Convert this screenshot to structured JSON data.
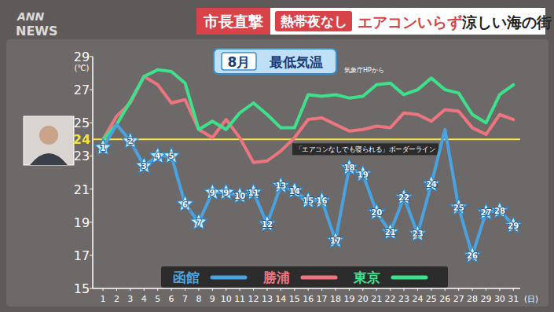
{
  "header": {
    "logo_top": "ANN",
    "logo_bottom": "NEWS",
    "tag": "市長直撃",
    "badge": "熱帯夜なし",
    "headline_red": "エアコンいらず",
    "headline": "涼しい海の街"
  },
  "chart_data": {
    "type": "line",
    "title": "8月 最低気温",
    "source": "気象庁HPから",
    "y_label": "(℃)",
    "x_label": "(日)",
    "x": [
      1,
      2,
      3,
      4,
      5,
      6,
      7,
      8,
      9,
      10,
      11,
      12,
      13,
      14,
      15,
      16,
      17,
      18,
      19,
      20,
      21,
      22,
      23,
      24,
      25,
      26,
      27,
      28,
      29,
      30,
      31
    ],
    "xlim": [
      0.25,
      31.5
    ],
    "xticks": [
      1,
      2,
      3,
      4,
      5,
      6,
      7,
      8,
      9,
      10,
      11,
      12,
      13,
      14,
      15,
      16,
      17,
      18,
      19,
      20,
      21,
      22,
      23,
      24,
      25,
      26,
      27,
      28,
      29,
      30,
      31
    ],
    "ylim": [
      15,
      29
    ],
    "yticks": [
      15,
      17,
      19,
      21,
      23,
      25,
      27,
      29
    ],
    "grid": false,
    "legend": "bottom",
    "annotations": [
      {
        "y": 24,
        "text": "「エアコンなしでも寝られる」ボーダーライン",
        "color": "#f2e23a"
      }
    ],
    "series": [
      {
        "name": "函館",
        "color": "#4aa3e0",
        "marker": "star",
        "values": [
          23.5,
          24.9,
          23.9,
          22.4,
          23.0,
          23.0,
          20.1,
          19.0,
          20.8,
          20.8,
          20.6,
          20.8,
          18.9,
          21.2,
          20.9,
          20.3,
          20.3,
          17.9,
          22.3,
          21.9,
          19.6,
          18.4,
          20.5,
          18.3,
          21.3,
          24.6,
          19.9,
          17.0,
          19.6,
          19.7,
          18.8
        ],
        "point_labels": [
          "1",
          null,
          "2",
          "3",
          "4",
          "5",
          "6",
          "7",
          "9",
          "9",
          "10",
          "11",
          "12",
          "13",
          "14",
          "15",
          "16",
          "17",
          "18",
          "19",
          "20",
          "21",
          "22",
          "23",
          "24",
          null,
          "25",
          "26",
          "27",
          "28",
          "29"
        ]
      },
      {
        "name": "勝浦",
        "color": "#ec7580",
        "values": [
          24.0,
          25.4,
          26.2,
          27.8,
          27.3,
          26.2,
          26.4,
          24.6,
          24.1,
          25.2,
          24.1,
          22.6,
          22.7,
          23.3,
          24.1,
          25.2,
          25.3,
          24.9,
          24.5,
          24.6,
          24.8,
          24.7,
          25.6,
          25.5,
          25.1,
          25.8,
          25.7,
          24.7,
          24.3,
          25.5,
          25.2
        ]
      },
      {
        "name": "東京",
        "color": "#3fe08c",
        "values": [
          24.0,
          24.9,
          26.3,
          27.8,
          28.2,
          28.1,
          27.4,
          24.6,
          25.1,
          24.6,
          25.6,
          26.2,
          25.5,
          24.7,
          24.7,
          26.7,
          26.6,
          26.7,
          26.5,
          26.6,
          27.3,
          27.4,
          26.7,
          27.0,
          27.7,
          27.0,
          26.8,
          25.5,
          25.0,
          26.7,
          27.3
        ]
      }
    ]
  }
}
